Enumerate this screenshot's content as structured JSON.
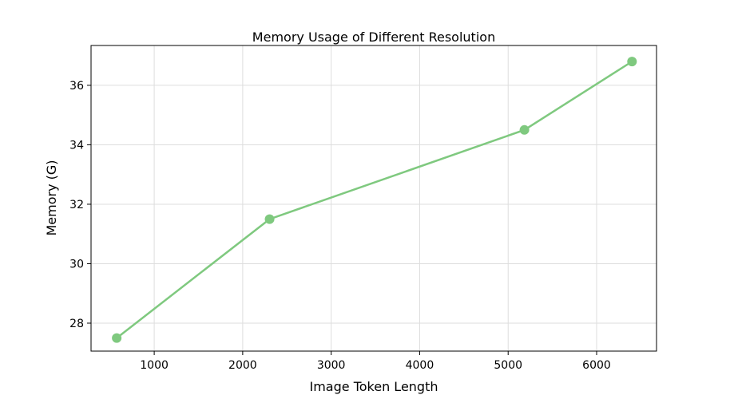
{
  "chart_data": {
    "type": "line",
    "title": "Memory Usage of Different Resolution",
    "x_label": "Image Token Length",
    "y_label": "Memory (G)",
    "x": [
      576,
      2304,
      5184,
      6400
    ],
    "series": [
      {
        "name": "Memory",
        "color": "#7fc97f",
        "values": [
          27.5,
          31.5,
          34.5,
          36.8
        ]
      }
    ],
    "xlim": [
      286,
      6677
    ],
    "xticks": [
      1000,
      2000,
      3000,
      4000,
      5000,
      6000
    ],
    "ylim": [
      27.06,
      37.34
    ],
    "yticks": [
      28,
      30,
      32,
      34,
      36
    ],
    "grid": true
  }
}
